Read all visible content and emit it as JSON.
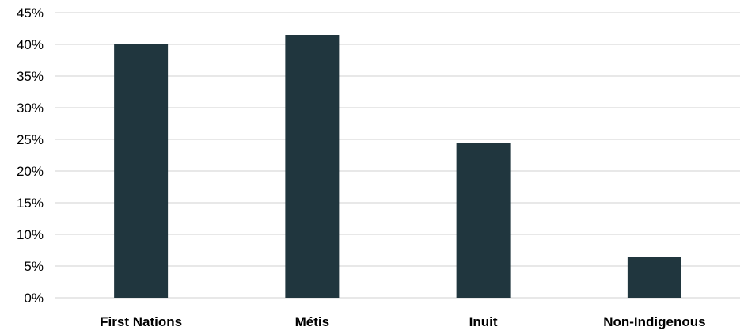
{
  "chart_data": {
    "type": "bar",
    "title": "",
    "xlabel": "",
    "ylabel": "",
    "categories": [
      "First Nations",
      "Métis",
      "Inuit",
      "Non-Indigenous"
    ],
    "values": [
      40,
      41.5,
      24.5,
      6.5
    ],
    "ylim": [
      0,
      45
    ],
    "y_ticks": [
      "0%",
      "5%",
      "10%",
      "15%",
      "20%",
      "25%",
      "30%",
      "35%",
      "40%",
      "45%"
    ],
    "y_tick_values": [
      0,
      5,
      10,
      15,
      20,
      25,
      30,
      35,
      40,
      45
    ],
    "grid": true,
    "legend": "none",
    "bar_color": "#20363e",
    "grid_color": "#d9d9d9"
  }
}
